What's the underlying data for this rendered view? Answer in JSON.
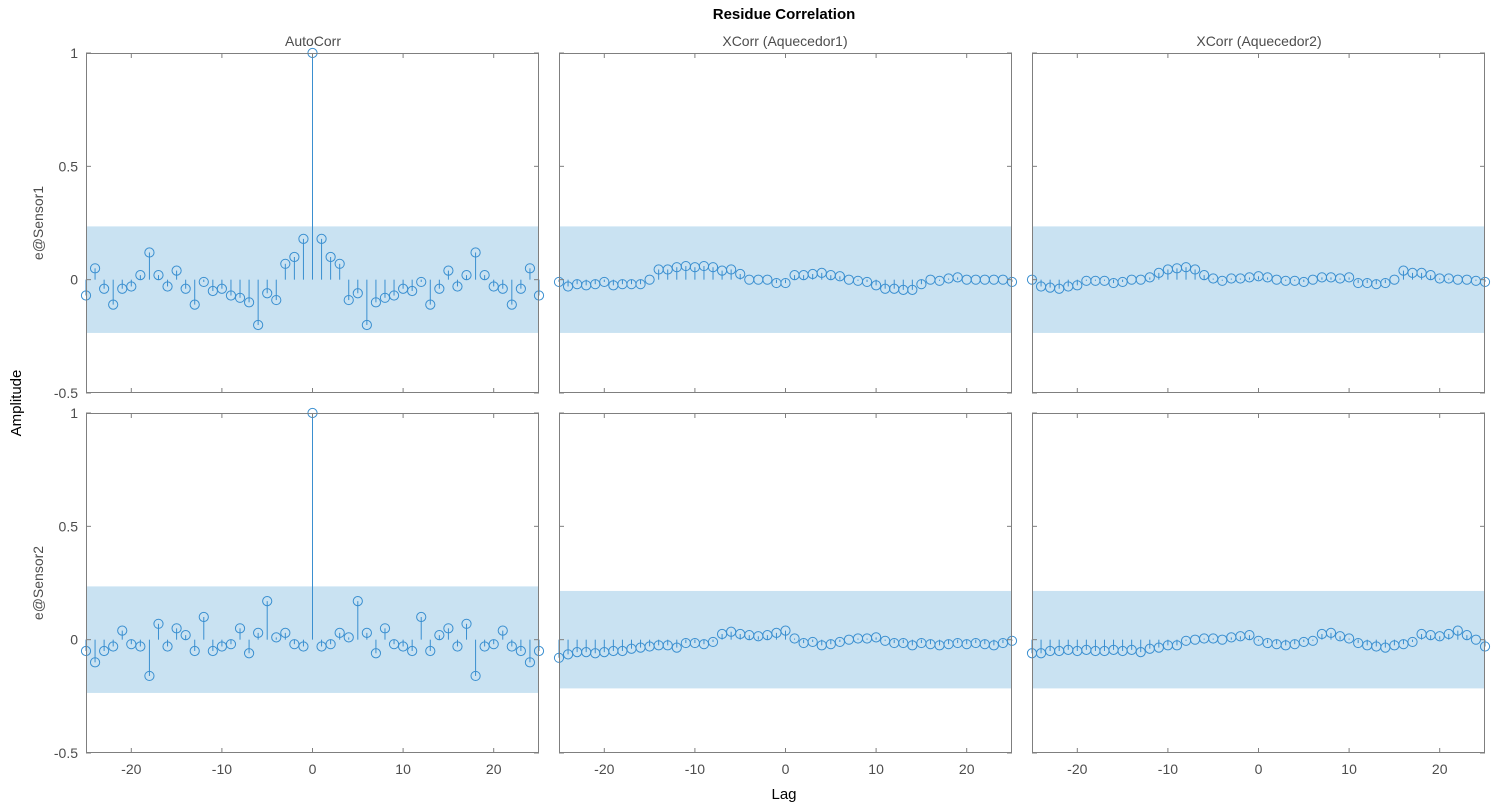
{
  "chart_data": {
    "type": "stem",
    "title": "Residue Correlation",
    "xlabel": "Lag",
    "ylabel": "Amplitude",
    "column_titles": [
      "AutoCorr",
      "XCorr (Aquecedor1)",
      "XCorr (Aquecedor2)"
    ],
    "row_labels": [
      "e@Sensor1",
      "e@Sensor2"
    ],
    "xlim": [
      -25,
      25
    ],
    "ylim": [
      -0.5,
      1
    ],
    "x_ticks": [
      -20,
      -10,
      0,
      10,
      20
    ],
    "y_ticks": [
      -0.5,
      0,
      0.5,
      1
    ],
    "y_tick_labels": [
      "-0.5",
      "0",
      "0.5",
      "1"
    ],
    "grid": false,
    "colors": {
      "stem": "#3a8fd0",
      "confidence_band": "#c9e2f2",
      "axes": "#7f7f7f",
      "text": "#4d4d4d"
    },
    "lags": [
      -25,
      -24,
      -23,
      -22,
      -21,
      -20,
      -19,
      -18,
      -17,
      -16,
      -15,
      -14,
      -13,
      -12,
      -11,
      -10,
      -9,
      -8,
      -7,
      -6,
      -5,
      -4,
      -3,
      -2,
      -1,
      0,
      1,
      2,
      3,
      4,
      5,
      6,
      7,
      8,
      9,
      10,
      11,
      12,
      13,
      14,
      15,
      16,
      17,
      18,
      19,
      20,
      21,
      22,
      23,
      24,
      25
    ],
    "panels": [
      {
        "row": 0,
        "col": 0,
        "band": 0.235,
        "values": [
          -0.07,
          0.05,
          -0.04,
          -0.11,
          -0.04,
          -0.03,
          0.02,
          0.12,
          0.02,
          -0.03,
          0.04,
          -0.04,
          -0.11,
          -0.01,
          -0.05,
          -0.04,
          -0.07,
          -0.08,
          -0.1,
          -0.2,
          -0.06,
          -0.09,
          0.07,
          0.1,
          0.18,
          1.0,
          0.18,
          0.1,
          0.07,
          -0.09,
          -0.06,
          -0.2,
          -0.1,
          -0.08,
          -0.07,
          -0.04,
          -0.05,
          -0.01,
          -0.11,
          -0.04,
          0.04,
          -0.03,
          0.02,
          0.12,
          0.02,
          -0.03,
          -0.04,
          -0.11,
          -0.04,
          0.05,
          -0.07
        ]
      },
      {
        "row": 0,
        "col": 1,
        "band": 0.235,
        "values": [
          -0.01,
          -0.03,
          -0.02,
          -0.025,
          -0.02,
          -0.01,
          -0.025,
          -0.02,
          -0.02,
          -0.02,
          0.0,
          0.045,
          0.045,
          0.055,
          0.06,
          0.055,
          0.06,
          0.055,
          0.04,
          0.045,
          0.025,
          0.0,
          0.0,
          0.0,
          -0.015,
          -0.015,
          0.02,
          0.02,
          0.025,
          0.03,
          0.02,
          0.015,
          0.0,
          -0.005,
          -0.01,
          -0.025,
          -0.04,
          -0.04,
          -0.045,
          -0.045,
          -0.02,
          0.0,
          -0.005,
          0.005,
          0.01,
          0.0,
          0.0,
          0.0,
          0.0,
          0.0,
          -0.01
        ]
      },
      {
        "row": 0,
        "col": 2,
        "band": 0.235,
        "values": [
          0.0,
          -0.03,
          -0.035,
          -0.04,
          -0.03,
          -0.025,
          -0.005,
          -0.005,
          -0.005,
          -0.015,
          -0.01,
          0.0,
          0.0,
          0.01,
          0.03,
          0.045,
          0.05,
          0.055,
          0.045,
          0.02,
          0.005,
          -0.005,
          0.005,
          0.005,
          0.01,
          0.015,
          0.01,
          0.0,
          -0.005,
          -0.005,
          -0.01,
          0.0,
          0.01,
          0.01,
          0.005,
          0.01,
          -0.015,
          -0.015,
          -0.02,
          -0.015,
          0.0,
          0.04,
          0.03,
          0.03,
          0.02,
          0.005,
          0.005,
          0.0,
          0.0,
          -0.005,
          -0.01
        ]
      },
      {
        "row": 1,
        "col": 0,
        "band": 0.235,
        "values": [
          -0.05,
          -0.1,
          -0.05,
          -0.03,
          0.04,
          -0.02,
          -0.03,
          -0.16,
          0.07,
          -0.03,
          0.05,
          0.02,
          -0.05,
          0.1,
          -0.05,
          -0.03,
          -0.02,
          0.05,
          -0.06,
          0.03,
          0.17,
          0.01,
          0.03,
          -0.02,
          -0.03,
          1.0,
          -0.03,
          -0.02,
          0.03,
          0.01,
          0.17,
          0.03,
          -0.06,
          0.05,
          -0.02,
          -0.03,
          -0.05,
          0.1,
          -0.05,
          0.02,
          0.05,
          -0.03,
          0.07,
          -0.16,
          -0.03,
          -0.02,
          0.04,
          -0.03,
          -0.05,
          -0.1,
          -0.05
        ]
      },
      {
        "row": 1,
        "col": 1,
        "band": 0.215,
        "values": [
          -0.08,
          -0.065,
          -0.055,
          -0.055,
          -0.06,
          -0.055,
          -0.05,
          -0.05,
          -0.04,
          -0.035,
          -0.03,
          -0.025,
          -0.025,
          -0.035,
          -0.015,
          -0.015,
          -0.02,
          -0.01,
          0.025,
          0.035,
          0.025,
          0.02,
          0.015,
          0.02,
          0.03,
          0.04,
          0.005,
          -0.015,
          -0.01,
          -0.025,
          -0.02,
          -0.01,
          0.0,
          0.005,
          0.005,
          0.01,
          -0.005,
          -0.015,
          -0.015,
          -0.025,
          -0.015,
          -0.02,
          -0.025,
          -0.02,
          -0.015,
          -0.02,
          -0.015,
          -0.02,
          -0.025,
          -0.015,
          -0.005
        ]
      },
      {
        "row": 1,
        "col": 2,
        "band": 0.215,
        "values": [
          -0.06,
          -0.06,
          -0.05,
          -0.05,
          -0.045,
          -0.05,
          -0.045,
          -0.05,
          -0.05,
          -0.045,
          -0.05,
          -0.045,
          -0.055,
          -0.04,
          -0.035,
          -0.025,
          -0.025,
          -0.005,
          0.0,
          0.005,
          0.005,
          0.0,
          0.01,
          0.015,
          0.02,
          -0.005,
          -0.015,
          -0.02,
          -0.025,
          -0.02,
          -0.01,
          -0.005,
          0.025,
          0.03,
          0.015,
          0.005,
          -0.015,
          -0.025,
          -0.03,
          -0.035,
          -0.025,
          -0.02,
          -0.01,
          0.025,
          0.02,
          0.015,
          0.025,
          0.04,
          0.02,
          0.0,
          -0.03
        ]
      }
    ]
  }
}
